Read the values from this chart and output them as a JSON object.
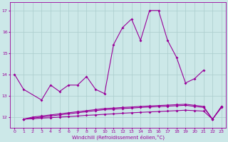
{
  "series1_x": [
    0,
    1,
    3,
    4,
    5,
    6,
    7,
    8,
    9,
    10,
    11,
    12,
    13,
    14,
    15,
    16,
    17,
    18,
    19,
    20,
    21
  ],
  "series1_y": [
    14.0,
    13.3,
    12.8,
    13.5,
    13.2,
    13.5,
    13.5,
    13.9,
    13.3,
    13.1,
    15.4,
    16.2,
    16.6,
    15.6,
    17.0,
    17.0,
    15.6,
    14.8,
    13.6,
    13.8,
    14.2
  ],
  "series2_x": [
    1,
    2,
    3,
    4,
    5,
    6,
    7,
    8,
    9,
    10,
    11,
    12,
    13,
    14,
    15,
    16,
    17,
    18,
    19,
    20,
    21,
    22,
    23
  ],
  "series2_y": [
    11.9,
    12.0,
    12.05,
    12.1,
    12.15,
    12.2,
    12.25,
    12.3,
    12.35,
    12.4,
    12.42,
    12.45,
    12.47,
    12.5,
    12.52,
    12.54,
    12.56,
    12.58,
    12.6,
    12.55,
    12.5,
    11.9,
    12.5
  ],
  "series3_x": [
    1,
    2,
    3,
    4,
    5,
    6,
    7,
    8,
    9,
    10,
    11,
    12,
    13,
    14,
    15,
    16,
    17,
    18,
    19,
    20,
    21,
    22,
    23
  ],
  "series3_y": [
    11.9,
    11.95,
    12.0,
    12.05,
    12.1,
    12.15,
    12.2,
    12.25,
    12.3,
    12.35,
    12.37,
    12.4,
    12.42,
    12.45,
    12.47,
    12.49,
    12.51,
    12.53,
    12.55,
    12.5,
    12.45,
    11.9,
    12.5
  ],
  "series4_x": [
    1,
    2,
    3,
    4,
    5,
    6,
    7,
    8,
    9,
    10,
    11,
    12,
    13,
    14,
    15,
    16,
    17,
    18,
    19,
    20,
    21,
    22,
    23
  ],
  "series4_y": [
    11.9,
    11.92,
    11.95,
    11.97,
    12.0,
    12.02,
    12.05,
    12.08,
    12.1,
    12.13,
    12.15,
    12.18,
    12.2,
    12.22,
    12.24,
    12.26,
    12.28,
    12.3,
    12.32,
    12.3,
    12.28,
    11.9,
    12.45
  ],
  "line_color": "#990099",
  "bg_color": "#cce8e8",
  "grid_color": "#aacccc",
  "ylim": [
    11.5,
    17.4
  ],
  "xlim": [
    -0.5,
    23.5
  ],
  "xlabel": "Windchill (Refroidissement éolien,°C)",
  "yticks": [
    12,
    13,
    14,
    15,
    16,
    17
  ],
  "xticks": [
    0,
    1,
    2,
    3,
    4,
    5,
    6,
    7,
    8,
    9,
    10,
    11,
    12,
    13,
    14,
    15,
    16,
    17,
    18,
    19,
    20,
    21,
    22,
    23
  ]
}
